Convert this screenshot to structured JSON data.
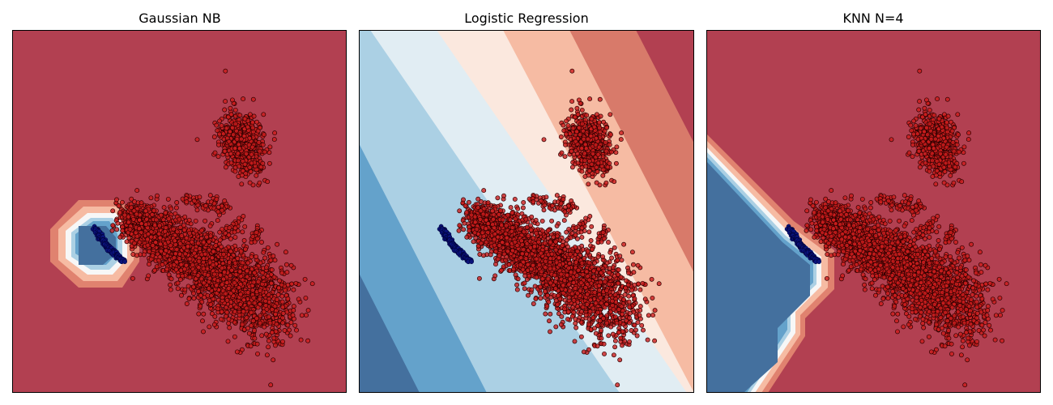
{
  "chart_data": [
    {
      "type": "scatter",
      "title": "Gaussian NB",
      "axes_visible": false,
      "grid": false,
      "background_class": "positive",
      "series": [
        {
          "values": "red point cloud (upper cluster, main elongated cluster)"
        },
        {
          "values": "dark blue arc (negative class)"
        }
      ],
      "decision_regions": [
        {
          "class": "negative",
          "shape": "octagon blob around blue arc",
          "rings": 5
        }
      ]
    },
    {
      "type": "scatter",
      "title": "Logistic Regression",
      "axes_visible": false,
      "grid": false,
      "decision_regions": [
        {
          "class": "linear bands",
          "direction": "diagonal",
          "bands": 8
        }
      ]
    },
    {
      "type": "scatter",
      "title": "KNN N=4",
      "axes_visible": false,
      "grid": false,
      "background_class": "positive",
      "decision_regions": [
        {
          "class": "negative",
          "shape": "left polygon region",
          "rings": 5
        }
      ]
    }
  ],
  "colors": {
    "red_dark": "#b24051",
    "red_mid": "#d87a6a",
    "red_light": "#f6bba3",
    "red_pale": "#fbe8de",
    "blue_pale": "#e1edf3",
    "blue_light": "#abd0e4",
    "blue_mid": "#64a2cb",
    "blue_dark": "#44709e",
    "point_red": "#cc1d1d",
    "point_edge": "#2d0000",
    "point_blue": "#0a127a"
  }
}
